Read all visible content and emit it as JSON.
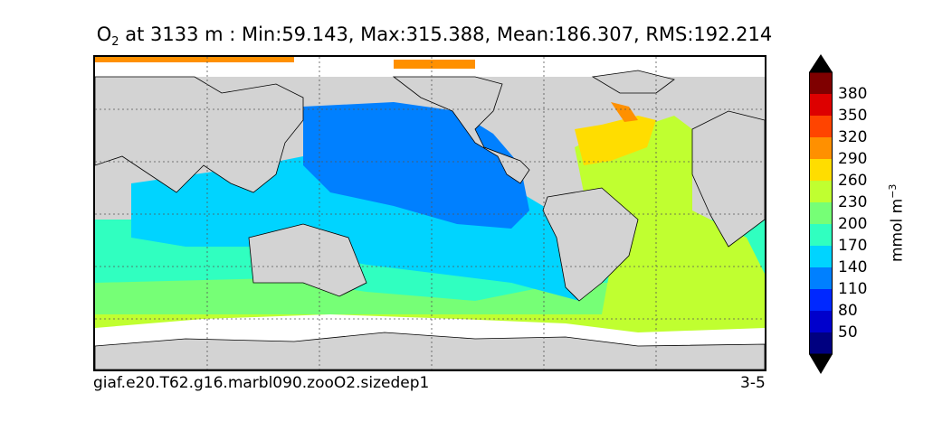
{
  "title": {
    "var_main": "O",
    "var_sub": "2",
    "text": "at 3133 m : Min:59.143, Max:315.388, Mean:186.307, RMS:192.214"
  },
  "caption": {
    "left": "giaf.e20.T62.g16.marbl090.zooO2.sizedep1",
    "right": "3-5"
  },
  "colorbar": {
    "label_text": "mmol m",
    "label_sup": "−3",
    "ticks": [
      "380",
      "350",
      "320",
      "290",
      "260",
      "230",
      "200",
      "170",
      "140",
      "110",
      "80",
      "50"
    ],
    "colors_top_to_bottom": [
      "#7f0000",
      "#dd0000",
      "#ff4400",
      "#ff9000",
      "#ffdd00",
      "#c0ff30",
      "#76ff76",
      "#30ffc0",
      "#00d4ff",
      "#0080ff",
      "#0028ff",
      "#0000cc",
      "#000080"
    ],
    "over_color": "#000000",
    "under_color": "#000000"
  },
  "legend_colors": {
    "land": "#d3d3d3",
    "ice_nodata": "#ffffff",
    "grid": "#555555"
  }
}
